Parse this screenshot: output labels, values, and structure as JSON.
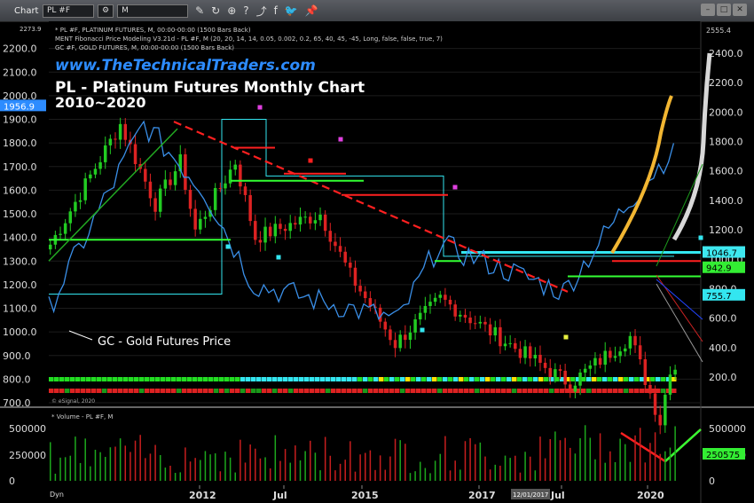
{
  "toolbar": {
    "title": "Chart",
    "symbol": "PL #F",
    "interval": "M"
  },
  "study_lines": [
    "* PL #F, PLATINUM FUTURES, M, 00:00-00:00 (1500 Bars Back)",
    "MENT Fibonacci Price Modeling V3.21d - PL #F, M (20, 20, 14, 14, 0.05, 0.002, 0.2, 65, 40, 45, -45, Long, false, false, true, 7)",
    "GC #F, GOLD FUTURES, M, 00:00-00:00 (1500 Bars Back)"
  ],
  "watermark": "www.TheTechnicalTraders.com",
  "title_line1": "PL - Platinum Futures Monthly Chart",
  "title_line2": "2010~2020",
  "gold_label": "GC - Gold Futures Price",
  "copyright": "© eSignal, 2020",
  "volume_label": "* Volume - PL #F, M",
  "dyn": "Dyn",
  "date_marker": "12/01/2017",
  "colors": {
    "up_bar": "#22cc22",
    "down_bar": "#dd2222",
    "gold_line": "#3a8fe8",
    "projection_orange": "#f2b632",
    "projection_white": "#d8d8d8",
    "resistance_line": "#ff2020",
    "support_green": "#33ff33",
    "cyan": "#33e6f0",
    "magenta": "#e040e0"
  },
  "chart_data": {
    "type": "candlestick",
    "left_axis": {
      "ticks": [
        "2200.0",
        "2100.0",
        "2000.0",
        "1900.0",
        "1800.0",
        "1700.0",
        "1600.0",
        "1500.0",
        "1400.0",
        "1300.0",
        "1200.0",
        "1100.0",
        "1000.0",
        "900.0",
        "800.0",
        "700.0"
      ],
      "ylim": [
        700,
        2300
      ],
      "top_label": "2273.9",
      "current_label": "1956.9"
    },
    "right_axis": {
      "ticks": [
        "2400.0",
        "2200.0",
        "2000.0",
        "1800.0",
        "1600.0",
        "1400.0",
        "1200.0",
        "1000.0",
        "800.0",
        "600.0",
        "400.0",
        "200.0"
      ],
      "ylim": [
        -70,
        2660
      ],
      "top_label": "2555.4",
      "badges": [
        "1046.7",
        "942.9",
        "755.7"
      ]
    },
    "x_axis": {
      "ticks": [
        "2012",
        "Jul",
        "2015",
        "2017",
        "Jul",
        "2020"
      ]
    },
    "platinum_key_points": [
      {
        "x": "2010-01",
        "y": 1370
      },
      {
        "x": "2010-06",
        "y": 1550
      },
      {
        "x": "2011-03",
        "y": 1880
      },
      {
        "x": "2011-10",
        "y": 1540
      },
      {
        "x": "2012-03",
        "y": 1720
      },
      {
        "x": "2012-06",
        "y": 1430
      },
      {
        "x": "2013-02",
        "y": 1720
      },
      {
        "x": "2013-06",
        "y": 1400
      },
      {
        "x": "2014-07",
        "y": 1500
      },
      {
        "x": "2015-01",
        "y": 1240
      },
      {
        "x": "2015-10",
        "y": 950
      },
      {
        "x": "2016-07",
        "y": 1140
      },
      {
        "x": "2018-09",
        "y": 780
      },
      {
        "x": "2019-09",
        "y": 980
      },
      {
        "x": "2020-03",
        "y": 620
      },
      {
        "x": "2020-05",
        "y": 850
      }
    ],
    "gold_key_points": [
      {
        "x": "2010-01",
        "y": 1100
      },
      {
        "x": "2011-08",
        "y": 1880
      },
      {
        "x": "2012-08",
        "y": 1600
      },
      {
        "x": "2013-06",
        "y": 1200
      },
      {
        "x": "2015-11",
        "y": 1050
      },
      {
        "x": "2016-07",
        "y": 1370
      },
      {
        "x": "2018-08",
        "y": 1170
      },
      {
        "x": "2019-09",
        "y": 1550
      },
      {
        "x": "2020-05",
        "y": 1750
      }
    ],
    "volume_axis": {
      "ticks": [
        "500000",
        "250000",
        "0"
      ],
      "badge": "250575"
    }
  }
}
